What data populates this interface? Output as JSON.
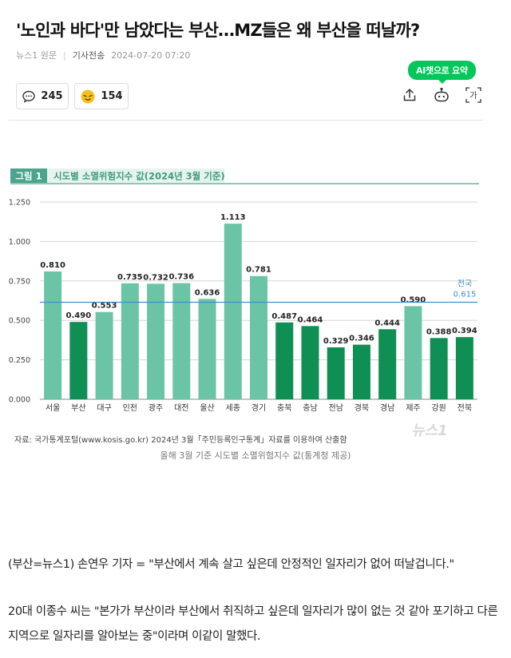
{
  "article": {
    "headline": "'노인과 바다'만 남았다는 부산…MZ들은 왜 부산을 떠날까?",
    "press": "뉴스1 원문",
    "send_type": "기사전송",
    "timestamp": "2024-07-20 07:20",
    "ai_summary_label": "AI챗으로 요약",
    "comment_count": "245",
    "reaction_count": "154",
    "font_size_icon_label": "가",
    "caption": "올해 3월 기준 시도별 소멸위험지수 값(통계청 제공)",
    "paragraphs": [
      "(부산=뉴스1) 손연우 기자 = \"부산에서 계속 살고 싶은데 안정적인 일자리가 없어 떠날겁니다.\"",
      "20대 이종수 씨는 \"본가가 부산이라 부산에서 취직하고 싶은데 일자리가 많이 없는 것 같아 포기하고 다른 지역으로 일자리를 알아보는 중\"이라며 이같이 말했다."
    ]
  },
  "icons": {
    "comment": "speech-bubble-icon",
    "reaction": "smiley-icon",
    "share": "share-icon",
    "ai_bot": "ai-bot-icon",
    "font_size": "font-size-icon"
  },
  "colors": {
    "light_bar": "#6cc4a6",
    "dark_bar": "#0f8f54",
    "avg_line": "#3a8fd0",
    "header_teal": "#4aa58c",
    "accent_green": "#03c75a"
  },
  "chart_data": {
    "type": "bar",
    "tag": "그림 1",
    "title": "시도별 소멸위험지수 값(2024년 3월 기준)",
    "categories": [
      "서울",
      "부산",
      "대구",
      "인천",
      "광주",
      "대전",
      "울산",
      "세종",
      "경기",
      "충북",
      "충남",
      "전남",
      "경북",
      "경남",
      "제주",
      "강원",
      "전북"
    ],
    "values": [
      0.81,
      0.49,
      0.553,
      0.735,
      0.732,
      0.736,
      0.636,
      1.113,
      0.781,
      0.487,
      0.464,
      0.329,
      0.346,
      0.444,
      0.59,
      0.388,
      0.394
    ],
    "value_labels": [
      "0.810",
      "0.490",
      "0.553",
      "0.735",
      "0.732",
      "0.736",
      "0.636",
      "1.113",
      "0.781",
      "0.487",
      "0.464",
      "0.329",
      "0.346",
      "0.444",
      "0.590",
      "0.388",
      "0.394"
    ],
    "highlight": [
      false,
      true,
      false,
      false,
      false,
      false,
      false,
      false,
      false,
      true,
      true,
      true,
      true,
      true,
      false,
      true,
      true
    ],
    "ylim": [
      0,
      1.25
    ],
    "yticks": [
      "0.000",
      "0.250",
      "0.500",
      "0.750",
      "1.000",
      "1.250"
    ],
    "reference_line": {
      "label": "전국",
      "value": 0.615,
      "value_label": "0.615"
    },
    "grid": true,
    "source": "자료: 국가통계포털(www.kosis.go.kr) 2024년 3월「주민등록인구통계」자료를 이용하여 산출함",
    "watermark": "뉴스1"
  }
}
